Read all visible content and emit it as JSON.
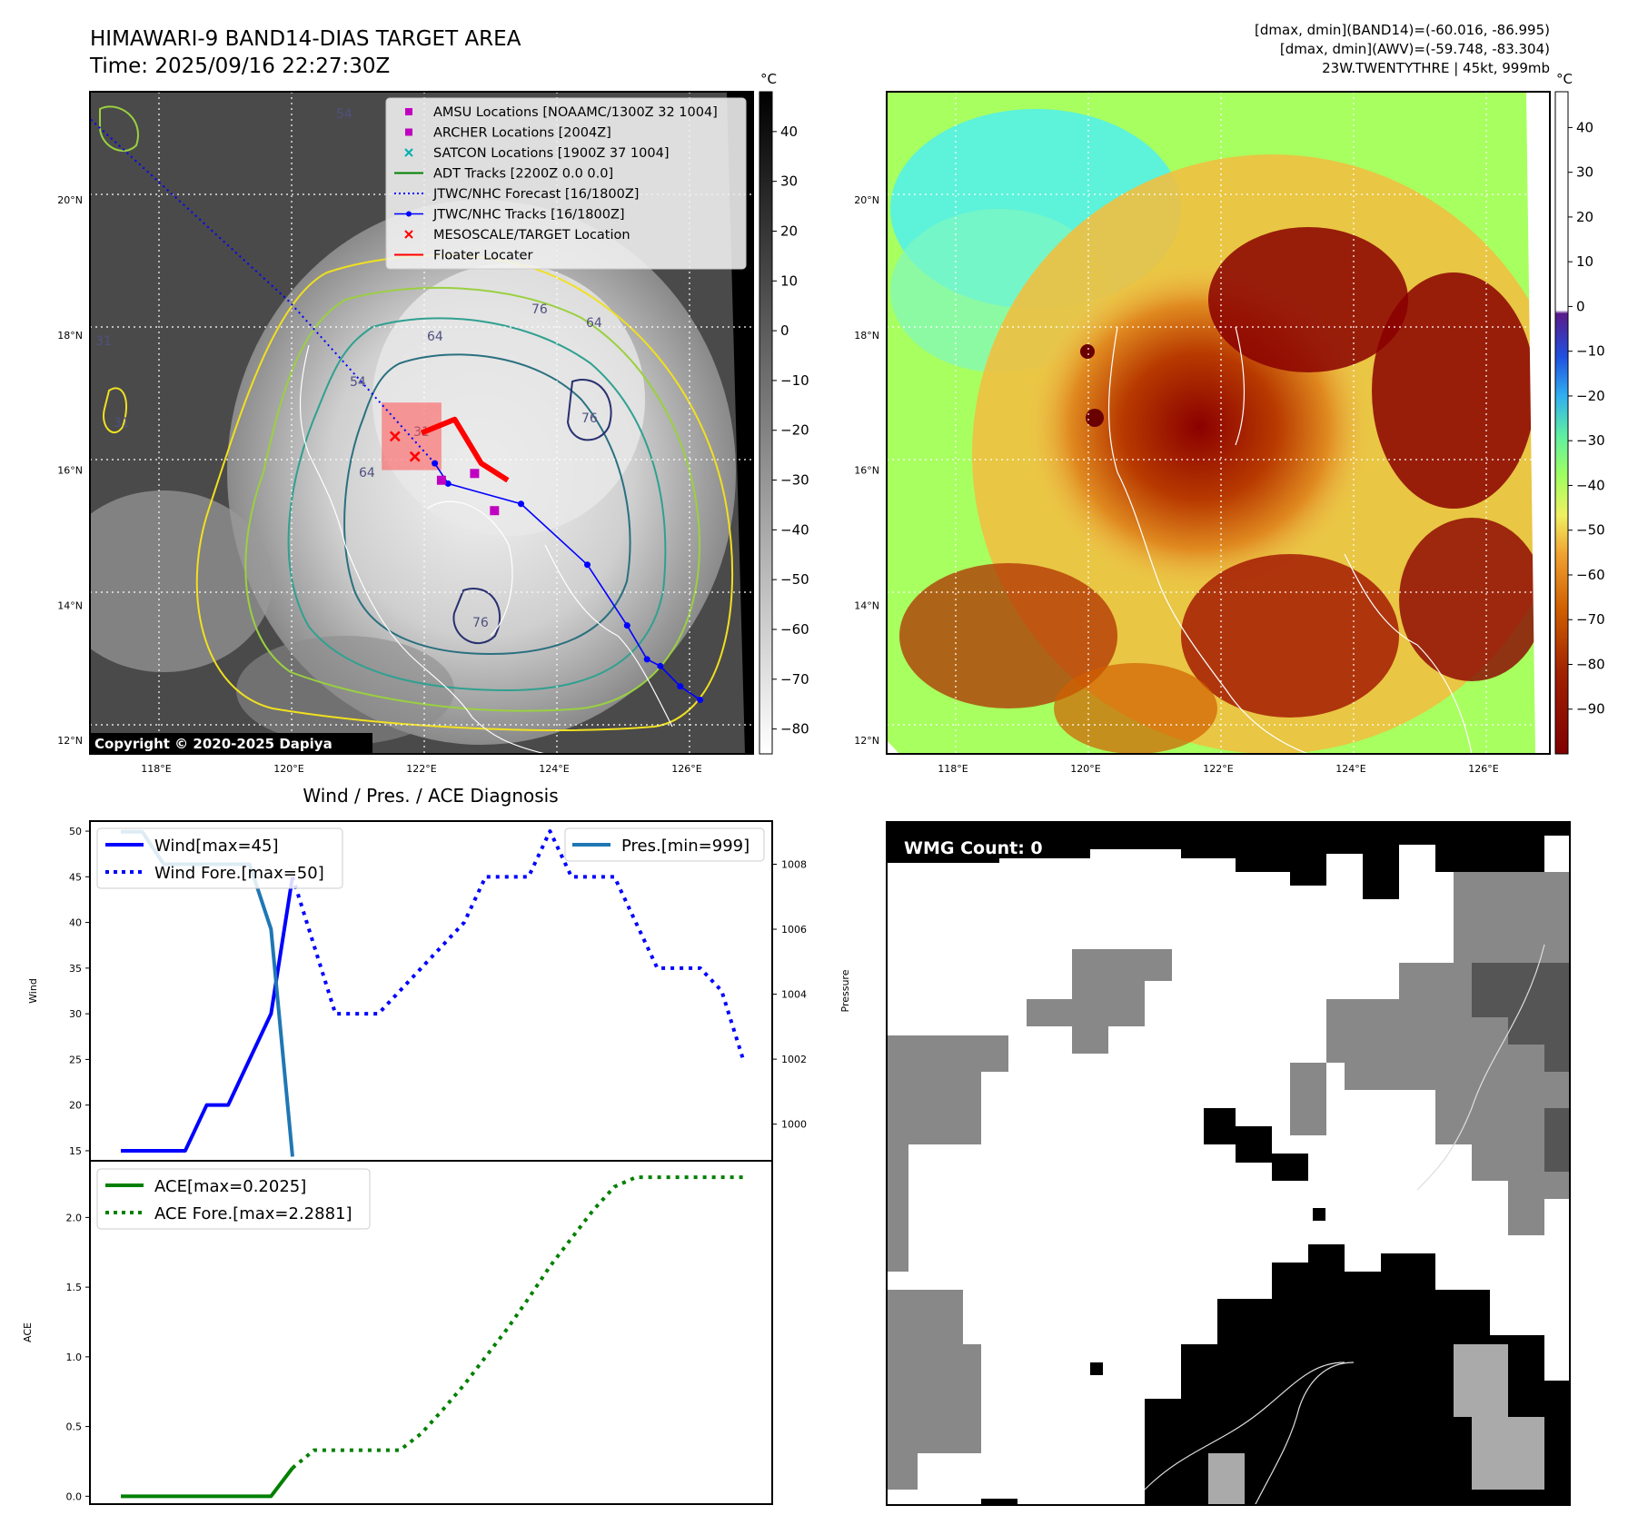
{
  "header": {
    "title": "HIMAWARI-9 BAND14-DIAS TARGET AREA",
    "time": "Time: 2025/09/16 22:27:30Z",
    "info_lines": [
      "[dmax, dmin](BAND14)=(-60.016, -86.995)",
      "[dmax, dmin](AWV)=(-59.748, -83.304)",
      "23W.TWENTYTHRE | 45kt, 999mb"
    ]
  },
  "map": {
    "lat_labels": [
      "20°N",
      "18°N",
      "16°N",
      "14°N",
      "12°N"
    ],
    "lat_values": [
      20,
      18,
      16,
      14,
      12
    ],
    "lon_labels": [
      "118°E",
      "120°E",
      "122°E",
      "124°E",
      "126°E"
    ],
    "lon_values": [
      118,
      120,
      122,
      124,
      126
    ],
    "extent": {
      "lon_min": 117,
      "lon_max": 127,
      "lat_min": 11.8,
      "lat_max": 21.6
    },
    "copyright": "Copyright © 2020-2025 Dapiya",
    "colorbar_unit": "°C",
    "colorbar_ticks": [
      40,
      30,
      20,
      10,
      0,
      -10,
      -20,
      -30,
      -40,
      -50,
      -60,
      -70,
      -80
    ],
    "colorbar_range": [
      48,
      -85
    ],
    "contour_labels": [
      "76",
      "64",
      "76",
      "64",
      "54",
      "54",
      "31",
      "31",
      "31",
      "76",
      "64"
    ],
    "legend": [
      {
        "label": "AMSU Locations [NOAAMC/1300Z 32 1004]",
        "marker": "square",
        "color": "#c000c0"
      },
      {
        "label": "ARCHER Locations [2004Z]",
        "marker": "square",
        "color": "#c000c0"
      },
      {
        "label": "SATCON Locations [1900Z 37 1004]",
        "marker": "x",
        "color": "#00b0b0"
      },
      {
        "label": "ADT Tracks [2200Z 0.0 0.0]",
        "marker": "line",
        "color": "#008000"
      },
      {
        "label": "JTWC/NHC Forecast [16/1800Z]",
        "marker": "dotted",
        "color": "#0000ff"
      },
      {
        "label": "JTWC/NHC Tracks [16/1800Z]",
        "marker": "line-dot",
        "color": "#0000ff"
      },
      {
        "label": "MESOSCALE/TARGET Location",
        "marker": "x",
        "color": "#ff0000"
      },
      {
        "label": "Floater Locater",
        "marker": "line",
        "color": "#ff0000"
      }
    ],
    "jtwc_track": [
      [
        126.2,
        12.6
      ],
      [
        125.9,
        12.8
      ],
      [
        125.6,
        13.1
      ],
      [
        125.4,
        13.2
      ],
      [
        125.1,
        13.7
      ],
      [
        124.5,
        14.6
      ],
      [
        123.5,
        15.5
      ],
      [
        122.4,
        15.8
      ],
      [
        122.2,
        16.1
      ]
    ],
    "jtwc_forecast": [
      [
        122.2,
        16.1
      ],
      [
        120.0,
        18.5
      ],
      [
        117.0,
        21.2
      ]
    ],
    "archer_points": [
      [
        122.3,
        15.85
      ],
      [
        122.8,
        15.95
      ],
      [
        123.1,
        15.4
      ]
    ],
    "target_x": [
      [
        121.6,
        16.5
      ],
      [
        121.9,
        16.2
      ]
    ],
    "floater_box": {
      "lon_min": 121.4,
      "lon_max": 122.3,
      "lat_min": 16.0,
      "lat_max": 17.0
    }
  },
  "awv": {
    "colorbar_unit": "°C",
    "colorbar_ticks": [
      40,
      30,
      20,
      10,
      0,
      -10,
      -20,
      -30,
      -40,
      -50,
      -60,
      -70,
      -80,
      -90
    ],
    "colorbar_range": [
      48,
      -100
    ]
  },
  "wmg": {
    "label": "WMG Count: 0"
  },
  "diag": {
    "title": "Wind / Pres. / ACE Diagnosis",
    "wind_ylabel": "Wind",
    "pres_ylabel": "Pressure",
    "ace_ylabel": "ACE",
    "wind_legend": [
      "Wind[max=45]",
      "Wind Fore.[max=50]"
    ],
    "pres_legend": "Pres.[min=999]",
    "ace_legend": [
      "ACE[max=0.2025]",
      "ACE Fore.[max=2.2881]"
    ],
    "wind_ticks": [
      50,
      45,
      40,
      35,
      30,
      25,
      20,
      15
    ],
    "pres_ticks": [
      1008,
      1006,
      1004,
      1002,
      1000
    ],
    "ace_ticks": [
      "2.0",
      "1.5",
      "1.0",
      "0.5",
      "0.0"
    ]
  },
  "chart_data": [
    {
      "type": "line",
      "title": "Wind / Pres. / ACE Diagnosis",
      "ylabel": "Wind",
      "ylim": [
        14,
        51
      ],
      "x_index_range": [
        0,
        29
      ],
      "series": [
        {
          "name": "Wind[max=45]",
          "x": [
            0,
            1,
            2,
            3,
            4,
            5,
            6,
            7,
            8
          ],
          "values": [
            15,
            15,
            15,
            15,
            20,
            20,
            25,
            30,
            45
          ]
        },
        {
          "name": "Wind Fore.[max=50]",
          "x": [
            8,
            9,
            10,
            11,
            12,
            13,
            14,
            15,
            16,
            17,
            18,
            19,
            20,
            21,
            22,
            23,
            24,
            25,
            26,
            27,
            28,
            29
          ],
          "values": [
            45,
            37.5,
            30,
            30,
            30,
            32.5,
            35,
            37.5,
            40,
            45,
            45,
            45,
            50,
            45,
            45,
            45,
            40,
            35,
            35,
            35,
            32.5,
            25
          ]
        }
      ]
    },
    {
      "type": "line",
      "ylabel": "Pressure",
      "ylim": [
        998.9,
        1009.3
      ],
      "x_index_range": [
        0,
        29
      ],
      "series": [
        {
          "name": "Pres.[min=999]",
          "x": [
            0,
            1,
            2,
            3,
            4,
            5,
            6,
            7,
            8
          ],
          "values": [
            1009,
            1009,
            1008,
            1008,
            1008,
            1008,
            1008,
            1006,
            999
          ]
        }
      ]
    },
    {
      "type": "line",
      "ylabel": "ACE",
      "ylim": [
        -0.05,
        2.4
      ],
      "x_index_range": [
        0,
        29
      ],
      "series": [
        {
          "name": "ACE[max=0.2025]",
          "x": [
            0,
            1,
            2,
            3,
            4,
            5,
            6,
            7,
            8
          ],
          "values": [
            0,
            0,
            0,
            0,
            0,
            0,
            0,
            0,
            0.2025
          ]
        },
        {
          "name": "ACE Fore.[max=2.2881]",
          "x": [
            8,
            9,
            10,
            11,
            12,
            13,
            14,
            15,
            16,
            17,
            18,
            19,
            20,
            21,
            22,
            23,
            24,
            25,
            26,
            27,
            28,
            29
          ],
          "values": [
            0.2025,
            0.33,
            0.33,
            0.33,
            0.33,
            0.33,
            0.45,
            0.62,
            0.8,
            1.0,
            1.2,
            1.42,
            1.65,
            1.85,
            2.05,
            2.22,
            2.2881,
            2.2881,
            2.2881,
            2.2881,
            2.2881,
            2.2881
          ]
        }
      ]
    }
  ]
}
